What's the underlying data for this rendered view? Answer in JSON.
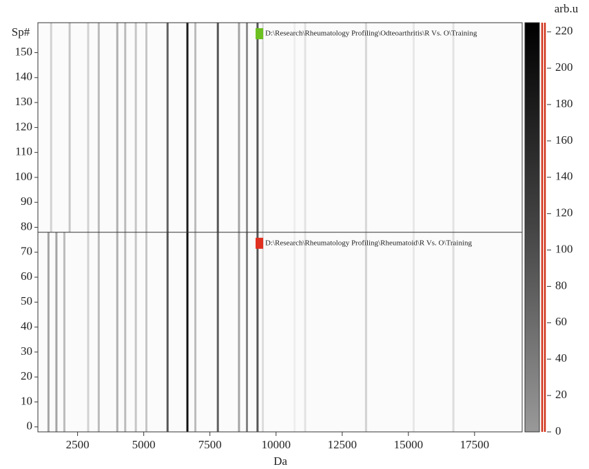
{
  "chart_data": {
    "type": "gel",
    "xlabel": "Da",
    "ylabel": "Sp#",
    "colorbar_label": "arb.u",
    "xlim": [
      1000,
      19300
    ],
    "xticks": [
      2500,
      5000,
      7500,
      10000,
      12500,
      15000,
      17500
    ],
    "ylim": [
      -2,
      162
    ],
    "yticks": [
      0,
      10,
      20,
      30,
      40,
      50,
      60,
      70,
      80,
      90,
      100,
      110,
      120,
      130,
      140,
      150
    ],
    "clim": [
      0,
      225
    ],
    "cticks": [
      0,
      20,
      40,
      60,
      80,
      100,
      120,
      140,
      160,
      180,
      200,
      220
    ],
    "series": [
      {
        "name": "D:\\Research\\Rheumatology Profiling\\Odteoarthritis\\R Vs. O\\Training",
        "color": "#6cc020",
        "spectra": [
          78,
          162
        ],
        "x": [
          1500,
          2200,
          2900,
          3300,
          4000,
          4300,
          4700,
          5100,
          5900,
          6650,
          6950,
          7800,
          8600,
          8900,
          9300,
          9500,
          10700,
          11100,
          13400,
          15200,
          16700
        ],
        "values": [
          40,
          50,
          40,
          60,
          70,
          60,
          50,
          50,
          140,
          200,
          60,
          150,
          80,
          100,
          150,
          30,
          15,
          25,
          35,
          20,
          25
        ]
      },
      {
        "name": "D:\\Research\\Rheumatology Profiling\\Rheumatoid\\R Vs. O\\Training",
        "color": "#e03020",
        "spectra": [
          -2,
          78
        ],
        "x": [
          1400,
          1700,
          2000,
          2900,
          3300,
          4000,
          4300,
          4700,
          5100,
          5900,
          6650,
          6950,
          7800,
          8600,
          8900,
          9300,
          9500,
          10700,
          11100,
          13400,
          15200,
          16700
        ],
        "values": [
          80,
          80,
          60,
          40,
          60,
          70,
          60,
          50,
          50,
          150,
          210,
          60,
          140,
          80,
          110,
          150,
          30,
          15,
          25,
          40,
          20,
          30
        ]
      }
    ]
  }
}
